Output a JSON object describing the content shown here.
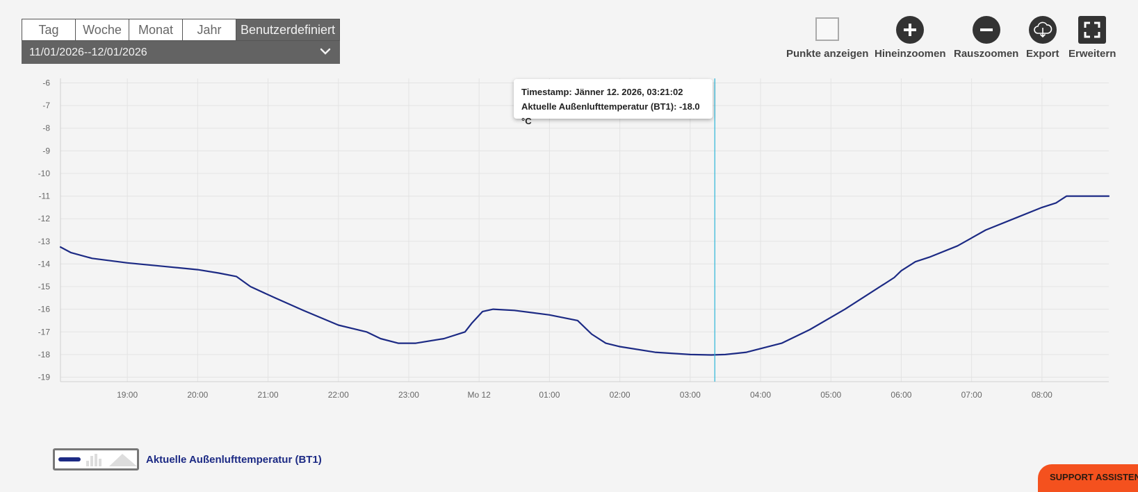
{
  "range_tabs": [
    "Tag",
    "Woche",
    "Monat",
    "Jahr",
    "Benutzerdefiniert"
  ],
  "date_range": "11/01/2026--12/01/2026",
  "toolbar": {
    "points_label": "Punkte anzeigen",
    "zoom_in_label": "Hineinzoomen",
    "zoom_out_label": "Rauszoomen",
    "export_label": "Export",
    "expand_label": "Erweitern"
  },
  "tooltip": {
    "line1": "Timestamp: Jänner 12. 2026, 03:21:02",
    "line2": "Aktuelle Außenlufttemperatur (BT1): -18.0 °C"
  },
  "legend": {
    "label": "Aktuelle Außenlufttemperatur (BT1)"
  },
  "support_label": "SUPPORT ASSISTENT",
  "colors": {
    "series": "#1c2a84",
    "crosshair": "#29b6d8",
    "tool_icon": "#333333",
    "support": "#f4511e"
  },
  "chart_data": {
    "type": "line",
    "x_unit": "hours",
    "xlim": [
      18.05,
      32.95
    ],
    "ylim": [
      -19.2,
      -5.8
    ],
    "x_ticks": [
      19,
      20,
      21,
      22,
      23,
      24,
      25,
      26,
      27,
      28,
      29,
      30,
      31,
      32
    ],
    "x_tick_labels": [
      "19:00",
      "20:00",
      "21:00",
      "22:00",
      "23:00",
      "Mo 12",
      "01:00",
      "02:00",
      "03:00",
      "04:00",
      "05:00",
      "06:00",
      "07:00",
      "08:00"
    ],
    "y_ticks": [
      -6,
      -7,
      -8,
      -9,
      -10,
      -11,
      -12,
      -13,
      -14,
      -15,
      -16,
      -17,
      -18,
      -19
    ],
    "grid": true,
    "crosshair_x": 27.35,
    "series": [
      {
        "name": "Aktuelle Außenlufttemperatur (BT1)",
        "x": [
          18.05,
          18.2,
          18.5,
          19.0,
          19.5,
          20.0,
          20.3,
          20.55,
          20.75,
          21.1,
          21.5,
          22.0,
          22.4,
          22.6,
          22.85,
          23.1,
          23.5,
          23.8,
          23.9,
          24.05,
          24.2,
          24.5,
          25.0,
          25.4,
          25.6,
          25.8,
          26.0,
          26.5,
          27.0,
          27.3,
          27.5,
          27.8,
          28.3,
          28.7,
          29.2,
          29.5,
          29.9,
          30.0,
          30.2,
          30.4,
          30.8,
          31.2,
          31.6,
          32.0,
          32.2,
          32.35,
          32.95
        ],
        "y": [
          -13.25,
          -13.5,
          -13.75,
          -13.95,
          -14.1,
          -14.25,
          -14.4,
          -14.55,
          -15.0,
          -15.5,
          -16.05,
          -16.7,
          -17.0,
          -17.3,
          -17.5,
          -17.5,
          -17.3,
          -17.0,
          -16.6,
          -16.1,
          -16.0,
          -16.05,
          -16.25,
          -16.5,
          -17.1,
          -17.5,
          -17.65,
          -17.9,
          -18.0,
          -18.02,
          -18.0,
          -17.9,
          -17.5,
          -16.9,
          -16.0,
          -15.4,
          -14.6,
          -14.3,
          -13.9,
          -13.7,
          -13.2,
          -12.5,
          -12.0,
          -11.5,
          -11.3,
          -11.0,
          -11.0
        ]
      }
    ]
  }
}
